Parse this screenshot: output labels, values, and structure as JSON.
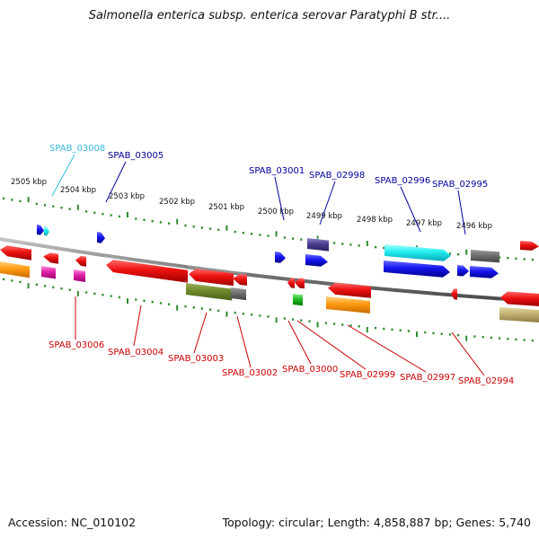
{
  "title": "Salmonella enterica subsp. enterica serovar Paratyphi B str....",
  "footer": {
    "accession": "Accession: NC_010102",
    "summary": "Topology: circular; Length: 4,858,887 bp; Genes: 5,740"
  },
  "scale_labels": [
    "2505 kbp",
    "2504 kbp",
    "2503 kbp",
    "2502 kbp",
    "2501 kbp",
    "2500 kbp",
    "2499 kbp",
    "2498 kbp",
    "2497 kbp",
    "2496 kbp"
  ],
  "top_labels": [
    {
      "text": "SPAB_03008",
      "color": "#33bbdd"
    },
    {
      "text": "SPAB_03005",
      "color": "#000099"
    },
    {
      "text": "SPAB_03001",
      "color": "#000099"
    },
    {
      "text": "SPAB_02998",
      "color": "#000099"
    },
    {
      "text": "SPAB_02996",
      "color": "#000099"
    },
    {
      "text": "SPAB_02995",
      "color": "#000099"
    }
  ],
  "bottom_labels": [
    {
      "text": "SPAB_03006",
      "color": "#cc0000"
    },
    {
      "text": "SPAB_03004",
      "color": "#cc0000"
    },
    {
      "text": "SPAB_03003",
      "color": "#cc0000"
    },
    {
      "text": "SPAB_03002",
      "color": "#cc0000"
    },
    {
      "text": "SPAB_03000",
      "color": "#cc0000"
    },
    {
      "text": "SPAB_02999",
      "color": "#cc0000"
    },
    {
      "text": "SPAB_02997",
      "color": "#cc0000"
    },
    {
      "text": "SPAB_02994",
      "color": "#cc0000"
    }
  ],
  "colors": {
    "backbone": "#8a8a8a",
    "tick": "#2e8b2e",
    "forward_gene": "#1a1aee",
    "reverse_gene": "#ee1111"
  }
}
